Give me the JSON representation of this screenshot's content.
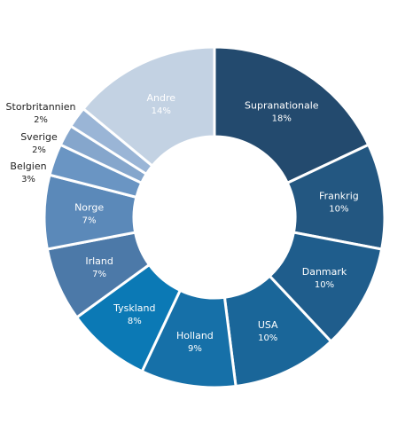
{
  "chart_data": {
    "type": "pie",
    "style": "donut",
    "title": "",
    "legend": "none",
    "value_suffix": "%",
    "slices": [
      {
        "name": "Supranationale",
        "value": 18,
        "color": "#234a6e"
      },
      {
        "name": "Frankrig",
        "value": 10,
        "color": "#235781"
      },
      {
        "name": "Danmark",
        "value": 10,
        "color": "#1f5d8c"
      },
      {
        "name": "USA",
        "value": 10,
        "color": "#1a6699"
      },
      {
        "name": "Holland",
        "value": 9,
        "color": "#1670a8"
      },
      {
        "name": "Tyskland",
        "value": 8,
        "color": "#0b79b5"
      },
      {
        "name": "Irland",
        "value": 7,
        "color": "#4c79a8"
      },
      {
        "name": "Norge",
        "value": 7,
        "color": "#5b89b9"
      },
      {
        "name": "Belgien",
        "value": 3,
        "color": "#6a95c3"
      },
      {
        "name": "Sverige",
        "value": 2,
        "color": "#85a6cc"
      },
      {
        "name": "Storbritannien",
        "value": 2,
        "color": "#9ab5d6"
      },
      {
        "name": "Andre",
        "value": 14,
        "color": "#c3d2e3"
      }
    ]
  }
}
